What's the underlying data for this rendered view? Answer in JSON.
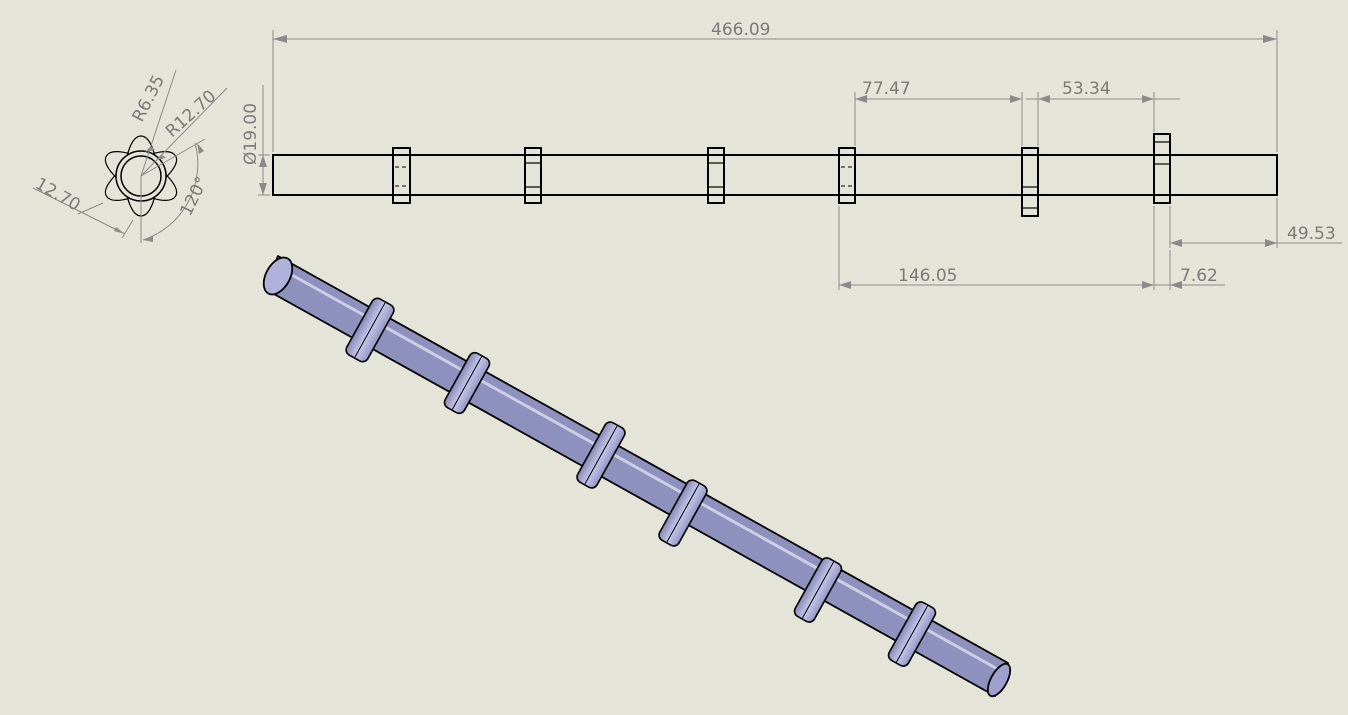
{
  "drawing": {
    "background": "#e5e4d9",
    "line_color": "#000000",
    "dimension_color": "#8a8a8a",
    "part_color": "#b9bbe0"
  },
  "dimensions": {
    "overall_length": "466.09",
    "spacing_a": "77.47",
    "spacing_b": "53.34",
    "diameter": "Ø19.00",
    "end_offset": "49.53",
    "span": "146.05",
    "lobe_width": "7.62",
    "inner_radius": "R6.35",
    "outer_radius": "R12.70",
    "lobe_offset": "12.70",
    "angle": "120°"
  }
}
